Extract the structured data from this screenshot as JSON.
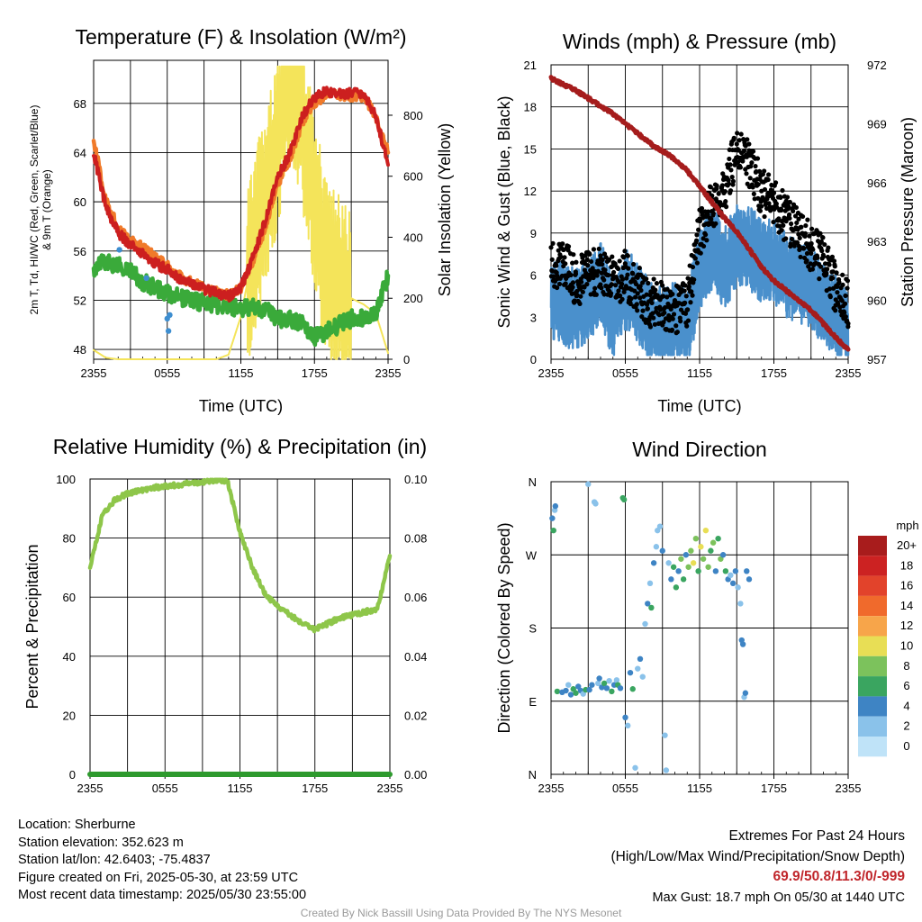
{
  "chart_data": [
    {
      "type": "line",
      "title": "Temperature (F) & Insolation (W/m²)",
      "xlabel": "Time (UTC)",
      "ylabel": "2m T, Td, HI/WC (Red, Green, Scarlet/Blue) & 9m T (Orange)",
      "ylabel_right": "Solar Insolation (Yellow)",
      "x_ticks": [
        "2355",
        "0555",
        "1155",
        "1755",
        "2355"
      ],
      "ylim": [
        47.2,
        71.5
      ],
      "y_ticks": [
        48,
        52,
        56,
        60,
        64,
        68
      ],
      "ylim_right": [
        0,
        980
      ],
      "y_ticks_right": [
        0,
        200,
        400,
        600,
        800
      ],
      "colors": {
        "t2m": "#cc1f1f",
        "t9m": "#f07a2a",
        "dewpoint": "#3aaa3a",
        "chill": "#3e8ed0",
        "solar": "#f4e45a"
      },
      "x_hours": [
        0,
        1,
        2,
        3,
        4,
        5,
        6,
        7,
        8,
        9,
        10,
        11,
        12,
        13,
        14,
        15,
        16,
        17,
        18,
        19,
        20,
        21,
        22,
        23,
        24
      ],
      "series": [
        {
          "key": "t2m",
          "values": [
            64,
            59.5,
            57.5,
            56.5,
            55.8,
            55,
            54.5,
            53.8,
            53.3,
            52.9,
            52.6,
            52.3,
            53,
            55.5,
            58.5,
            62,
            64,
            67,
            68.5,
            69,
            68.8,
            68.8,
            68.8,
            67,
            63
          ]
        },
        {
          "key": "t9m",
          "values": [
            65,
            60,
            58,
            57,
            56.3,
            55.5,
            54.8,
            54,
            53.4,
            53,
            52.7,
            52.4,
            53,
            55.2,
            58,
            61.5,
            63.5,
            66.5,
            68,
            68.8,
            68.6,
            68.6,
            68.6,
            67,
            64
          ]
        },
        {
          "key": "dewpoint",
          "values": [
            54.5,
            55.2,
            54.8,
            54.4,
            53.5,
            53,
            52.6,
            52.2,
            52,
            51.8,
            51.6,
            51.5,
            51.3,
            51.5,
            51.2,
            50.5,
            50.5,
            50,
            49,
            49.5,
            50,
            50.5,
            50.5,
            51,
            54
          ]
        },
        {
          "key": "solar",
          "values": [
            30,
            5,
            0,
            0,
            0,
            0,
            0,
            0,
            0,
            0,
            0,
            15,
            140,
            350,
            520,
            720,
            950,
            800,
            500,
            300,
            240,
            200,
            180,
            150,
            20
          ]
        }
      ],
      "chill_points": [
        [
          2.1,
          56.1
        ],
        [
          4.3,
          53.8
        ],
        [
          6.0,
          50.5
        ],
        [
          6.1,
          49.5
        ],
        [
          6.2,
          50.8
        ]
      ]
    },
    {
      "type": "line",
      "title": "Winds (mph) & Pressure (mb)",
      "xlabel": "Time (UTC)",
      "ylabel": "Sonic Wind & Gust (Blue, Black)",
      "ylabel_right": "Station Pressure (Maroon)",
      "x_ticks": [
        "2355",
        "0555",
        "1155",
        "1755",
        "2355"
      ],
      "ylim": [
        0,
        21
      ],
      "y_ticks": [
        0,
        3,
        6,
        9,
        12,
        15,
        18,
        21
      ],
      "ylim_right": [
        957,
        972
      ],
      "y_ticks_right": [
        957,
        960,
        963,
        966,
        969,
        972
      ],
      "colors": {
        "wind": "#4a90cc",
        "gust": "#000000",
        "pressure": "#a51c1c"
      },
      "x_hours": [
        0,
        1,
        2,
        3,
        4,
        5,
        6,
        7,
        8,
        9,
        10,
        11,
        12,
        13,
        14,
        15,
        16,
        17,
        18,
        19,
        20,
        21,
        22,
        23,
        24
      ],
      "series": [
        {
          "key": "wind",
          "values": [
            4.5,
            4,
            3.5,
            4,
            5.5,
            3,
            5,
            4,
            2.5,
            2.5,
            2.5,
            2,
            6.5,
            8,
            6.5,
            8,
            8,
            7,
            7,
            6,
            5.5,
            5,
            4,
            3,
            2
          ]
        },
        {
          "key": "gust",
          "values": [
            6.5,
            7,
            5.5,
            6,
            6.5,
            5.5,
            6,
            5,
            4,
            4,
            3.5,
            4,
            9,
            11,
            12,
            15,
            14,
            12,
            11,
            10,
            9,
            8,
            7,
            5,
            4
          ]
        },
        {
          "key": "pressure",
          "values": [
            971.3,
            971,
            970.7,
            970.3,
            969.9,
            969.5,
            969,
            968.5,
            968,
            967.6,
            967.2,
            966.6,
            965.8,
            965,
            964.2,
            963.5,
            962.6,
            961.7,
            961,
            960.5,
            960,
            959.5,
            958.8,
            958.1,
            957.5
          ]
        }
      ]
    },
    {
      "type": "line",
      "title": "Relative Humidity (%) & Precipitation (in)",
      "xlabel": "",
      "ylabel": "Percent & Precipitation",
      "x_ticks": [
        "2355",
        "0555",
        "1155",
        "1755",
        "2355"
      ],
      "ylim": [
        0,
        100
      ],
      "y_ticks": [
        0,
        20,
        40,
        60,
        80,
        100
      ],
      "ylim_right": [
        0,
        0.1
      ],
      "y_ticks_right": [
        "0.00",
        "0.02",
        "0.04",
        "0.06",
        "0.08",
        "0.10"
      ],
      "colors": {
        "rh": "#8ec64a",
        "precip": "#2e9a2e"
      },
      "x_hours": [
        0,
        1,
        2,
        3,
        4,
        5,
        6,
        7,
        8,
        9,
        10,
        11,
        12,
        13,
        14,
        15,
        16,
        17,
        18,
        19,
        20,
        21,
        22,
        23,
        24
      ],
      "series": [
        {
          "key": "rh",
          "values": [
            70,
            88,
            93,
            95,
            96,
            97,
            97.5,
            98,
            98.5,
            99,
            99.5,
            99.5,
            82,
            70,
            61,
            57,
            54,
            51,
            49,
            51,
            53,
            54,
            55,
            56,
            74
          ]
        },
        {
          "key": "precip",
          "values": [
            0,
            0,
            0,
            0,
            0,
            0,
            0,
            0,
            0,
            0,
            0,
            0,
            0,
            0,
            0,
            0,
            0,
            0,
            0,
            0,
            0,
            0,
            0,
            0,
            0
          ]
        }
      ]
    },
    {
      "type": "scatter",
      "title": "Wind Direction",
      "xlabel": "",
      "ylabel": "Direction (Colored By Speed)",
      "x_ticks": [
        "2355",
        "0555",
        "1155",
        "1755",
        "2355"
      ],
      "y_ticks": [
        "N",
        "E",
        "S",
        "W",
        "N"
      ],
      "ylim": [
        0,
        360
      ],
      "colorbar": {
        "title": "mph",
        "labels": [
          "20+",
          "18",
          "16",
          "14",
          "12",
          "10",
          "8",
          "6",
          "4",
          "2",
          "0"
        ],
        "colors": [
          "#a81c1c",
          "#cc2222",
          "#e2432b",
          "#f06a2c",
          "#f7a54a",
          "#e8de55",
          "#7cc25c",
          "#3aa560",
          "#3e84c4",
          "#8ac2ea",
          "#bfe3f8"
        ]
      },
      "points": [
        [
          0.1,
          315,
          4
        ],
        [
          0.2,
          300,
          6
        ],
        [
          0.3,
          325,
          2
        ],
        [
          0.35,
          330,
          4
        ],
        [
          0.5,
          102,
          6
        ],
        [
          0.9,
          101,
          4
        ],
        [
          1.2,
          103,
          4
        ],
        [
          1.4,
          110,
          2
        ],
        [
          1.6,
          98,
          4
        ],
        [
          1.8,
          105,
          6
        ],
        [
          2.0,
          100,
          6
        ],
        [
          2.2,
          108,
          4
        ],
        [
          2.4,
          103,
          4
        ],
        [
          2.6,
          99,
          2
        ],
        [
          2.8,
          104,
          6
        ],
        [
          3.0,
          357,
          2
        ],
        [
          3.1,
          104,
          4
        ],
        [
          3.3,
          110,
          4
        ],
        [
          3.5,
          335,
          2
        ],
        [
          3.6,
          333,
          2
        ],
        [
          3.8,
          112,
          2
        ],
        [
          3.9,
          118,
          4
        ],
        [
          4.1,
          107,
          4
        ],
        [
          4.3,
          112,
          6
        ],
        [
          4.5,
          106,
          4
        ],
        [
          4.7,
          115,
          2
        ],
        [
          4.9,
          102,
          6
        ],
        [
          5.1,
          110,
          4
        ],
        [
          5.3,
          116,
          2
        ],
        [
          5.4,
          110,
          6
        ],
        [
          5.6,
          106,
          4
        ],
        [
          5.8,
          340,
          6
        ],
        [
          5.9,
          338,
          6
        ],
        [
          6.0,
          70,
          4
        ],
        [
          6.2,
          60,
          2
        ],
        [
          6.4,
          125,
          4
        ],
        [
          6.6,
          105,
          6
        ],
        [
          6.8,
          8,
          2
        ],
        [
          7.0,
          130,
          2
        ],
        [
          7.2,
          142,
          4
        ],
        [
          7.4,
          120,
          2
        ],
        [
          7.6,
          185,
          2
        ],
        [
          7.8,
          210,
          4
        ],
        [
          8.0,
          235,
          2
        ],
        [
          8.1,
          205,
          6
        ],
        [
          8.3,
          260,
          4
        ],
        [
          8.5,
          280,
          2
        ],
        [
          8.6,
          300,
          2
        ],
        [
          8.8,
          305,
          2
        ],
        [
          9.0,
          275,
          4
        ],
        [
          9.2,
          48,
          2
        ],
        [
          9.3,
          5,
          2
        ],
        [
          9.5,
          260,
          2
        ],
        [
          9.7,
          240,
          4
        ],
        [
          9.9,
          255,
          6
        ],
        [
          10.1,
          230,
          6
        ],
        [
          10.3,
          250,
          4
        ],
        [
          10.5,
          265,
          8
        ],
        [
          10.7,
          240,
          6
        ],
        [
          10.9,
          270,
          4
        ],
        [
          11.1,
          255,
          8
        ],
        [
          11.3,
          275,
          8
        ],
        [
          11.5,
          260,
          10
        ],
        [
          11.7,
          290,
          8
        ],
        [
          11.9,
          250,
          6
        ],
        [
          12.1,
          280,
          10
        ],
        [
          12.3,
          265,
          8
        ],
        [
          12.5,
          300,
          10
        ],
        [
          12.7,
          255,
          8
        ],
        [
          12.9,
          275,
          6
        ],
        [
          13.1,
          285,
          8
        ],
        [
          13.3,
          250,
          4
        ],
        [
          13.5,
          290,
          6
        ],
        [
          13.7,
          265,
          8
        ],
        [
          13.9,
          270,
          4
        ],
        [
          14.1,
          250,
          6
        ],
        [
          14.3,
          240,
          4
        ],
        [
          14.5,
          245,
          2
        ],
        [
          14.7,
          235,
          4
        ],
        [
          14.9,
          250,
          4
        ],
        [
          15.1,
          230,
          2
        ],
        [
          15.3,
          210,
          2
        ],
        [
          15.4,
          165,
          4
        ],
        [
          15.5,
          160,
          4
        ],
        [
          15.6,
          95,
          2
        ],
        [
          15.7,
          100,
          4
        ],
        [
          15.8,
          250,
          4
        ],
        [
          16.0,
          240,
          4
        ]
      ]
    }
  ],
  "footer": {
    "location": "Location: Sherburne",
    "elevation": "Station elevation: 352.623 m",
    "latlon": "Station lat/lon: 42.6403; -75.4837",
    "created": "Figure created on Fri, 2025-05-30, at 23:59 UTC",
    "recent": "Most recent data timestamp: 2025/05/30 23:55:00"
  },
  "extremes": {
    "heading": "Extremes For Past 24 Hours",
    "subheading": "(High/Low/Max Wind/Precipitation/Snow Depth)",
    "values": "69.9/50.8/11.3/0/-999",
    "gust": "Max Gust: 18.7 mph On 05/30 at 1440 UTC"
  },
  "credit": "Created By Nick Bassill Using Data Provided By The NYS Mesonet"
}
